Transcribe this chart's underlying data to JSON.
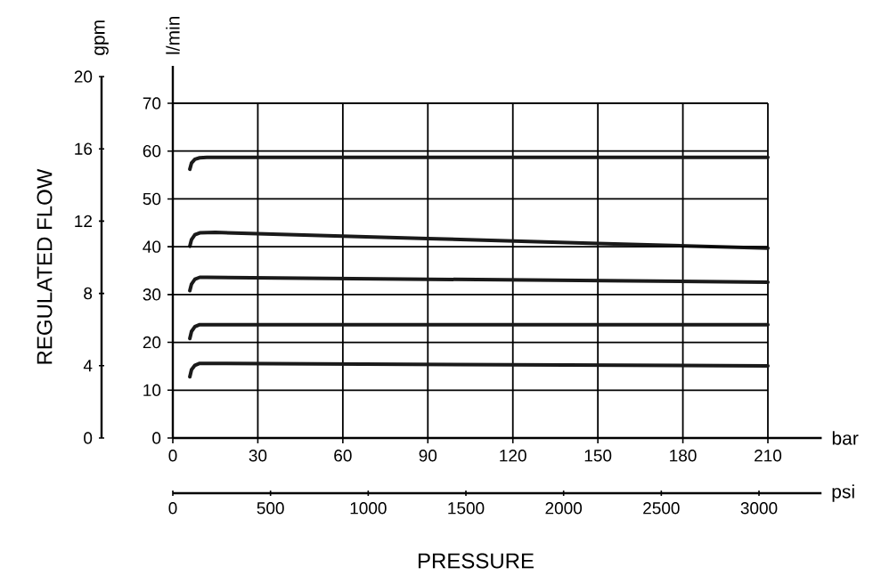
{
  "chart_data": {
    "type": "line",
    "xlabel": "bar",
    "x2label": "psi",
    "ylabel": "l/min",
    "y2label": "gpm",
    "annotations": [
      "REGULATED FLOW",
      "PRESSURE"
    ],
    "xlim": [
      0,
      229
    ],
    "xticks": [
      0,
      30,
      60,
      90,
      120,
      150,
      180,
      210
    ],
    "x2lim": [
      0,
      3320
    ],
    "x2ticks": [
      0,
      500,
      1000,
      1500,
      2000,
      2500,
      3000
    ],
    "ylim": [
      0,
      70
    ],
    "yticks": [
      0,
      10,
      20,
      30,
      40,
      50,
      60,
      70
    ],
    "y2lim": [
      0,
      20
    ],
    "y2ticks": [
      0,
      4,
      8,
      12,
      16,
      20
    ],
    "grid": true,
    "series": [
      {
        "color": "#1a1a1a",
        "x": [
          6,
          6.6,
          7.8,
          9.5,
          12,
          210
        ],
        "values": [
          56.2,
          57.5,
          58.3,
          58.6,
          58.7,
          58.7
        ]
      },
      {
        "color": "#1a1a1a",
        "x": [
          6,
          6.6,
          7.8,
          9.5,
          15,
          90,
          150,
          210
        ],
        "values": [
          40.1,
          41.5,
          42.5,
          42.9,
          43,
          41.7,
          40.7,
          39.7
        ]
      },
      {
        "color": "#1a1a1a",
        "x": [
          6,
          6.6,
          7.8,
          9.5,
          12,
          210
        ],
        "values": [
          30.8,
          32.2,
          33.2,
          33.6,
          33.6,
          32.6
        ]
      },
      {
        "color": "#1a1a1a",
        "x": [
          6,
          6.6,
          7.8,
          9.5,
          12,
          210
        ],
        "values": [
          20.8,
          22.3,
          23.3,
          23.7,
          23.7,
          23.7
        ]
      },
      {
        "color": "#1a1a1a",
        "x": [
          6,
          6.6,
          7.8,
          9.5,
          12,
          210
        ],
        "values": [
          12.8,
          14.3,
          15.2,
          15.6,
          15.6,
          15.1
        ]
      }
    ]
  }
}
